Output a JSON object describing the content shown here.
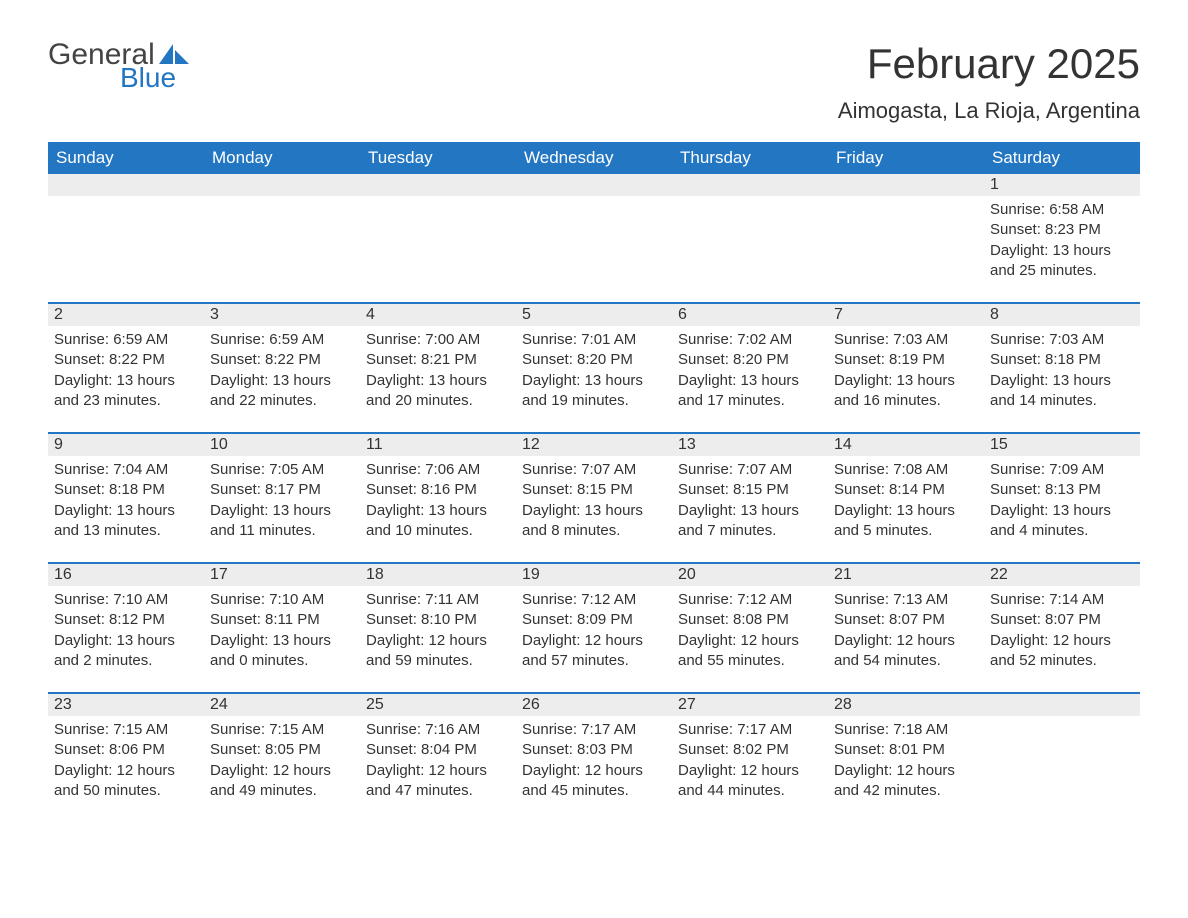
{
  "logo": {
    "text1": "General",
    "text2": "Blue",
    "sail_color": "#2276c2",
    "text1_color": "#444444"
  },
  "title": "February 2025",
  "location": "Aimogasta, La Rioja, Argentina",
  "colors": {
    "header_bg": "#2276c2",
    "header_text": "#ffffff",
    "daynum_bg": "#ededed",
    "week_border": "#2276c2",
    "body_text": "#333333",
    "page_bg": "#ffffff"
  },
  "day_headers": [
    "Sunday",
    "Monday",
    "Tuesday",
    "Wednesday",
    "Thursday",
    "Friday",
    "Saturday"
  ],
  "weeks": [
    [
      {
        "blank": true
      },
      {
        "blank": true
      },
      {
        "blank": true
      },
      {
        "blank": true
      },
      {
        "blank": true
      },
      {
        "blank": true
      },
      {
        "day": "1",
        "sunrise": "Sunrise: 6:58 AM",
        "sunset": "Sunset: 8:23 PM",
        "daylight": "Daylight: 13 hours and 25 minutes."
      }
    ],
    [
      {
        "day": "2",
        "sunrise": "Sunrise: 6:59 AM",
        "sunset": "Sunset: 8:22 PM",
        "daylight": "Daylight: 13 hours and 23 minutes."
      },
      {
        "day": "3",
        "sunrise": "Sunrise: 6:59 AM",
        "sunset": "Sunset: 8:22 PM",
        "daylight": "Daylight: 13 hours and 22 minutes."
      },
      {
        "day": "4",
        "sunrise": "Sunrise: 7:00 AM",
        "sunset": "Sunset: 8:21 PM",
        "daylight": "Daylight: 13 hours and 20 minutes."
      },
      {
        "day": "5",
        "sunrise": "Sunrise: 7:01 AM",
        "sunset": "Sunset: 8:20 PM",
        "daylight": "Daylight: 13 hours and 19 minutes."
      },
      {
        "day": "6",
        "sunrise": "Sunrise: 7:02 AM",
        "sunset": "Sunset: 8:20 PM",
        "daylight": "Daylight: 13 hours and 17 minutes."
      },
      {
        "day": "7",
        "sunrise": "Sunrise: 7:03 AM",
        "sunset": "Sunset: 8:19 PM",
        "daylight": "Daylight: 13 hours and 16 minutes."
      },
      {
        "day": "8",
        "sunrise": "Sunrise: 7:03 AM",
        "sunset": "Sunset: 8:18 PM",
        "daylight": "Daylight: 13 hours and 14 minutes."
      }
    ],
    [
      {
        "day": "9",
        "sunrise": "Sunrise: 7:04 AM",
        "sunset": "Sunset: 8:18 PM",
        "daylight": "Daylight: 13 hours and 13 minutes."
      },
      {
        "day": "10",
        "sunrise": "Sunrise: 7:05 AM",
        "sunset": "Sunset: 8:17 PM",
        "daylight": "Daylight: 13 hours and 11 minutes."
      },
      {
        "day": "11",
        "sunrise": "Sunrise: 7:06 AM",
        "sunset": "Sunset: 8:16 PM",
        "daylight": "Daylight: 13 hours and 10 minutes."
      },
      {
        "day": "12",
        "sunrise": "Sunrise: 7:07 AM",
        "sunset": "Sunset: 8:15 PM",
        "daylight": "Daylight: 13 hours and 8 minutes."
      },
      {
        "day": "13",
        "sunrise": "Sunrise: 7:07 AM",
        "sunset": "Sunset: 8:15 PM",
        "daylight": "Daylight: 13 hours and 7 minutes."
      },
      {
        "day": "14",
        "sunrise": "Sunrise: 7:08 AM",
        "sunset": "Sunset: 8:14 PM",
        "daylight": "Daylight: 13 hours and 5 minutes."
      },
      {
        "day": "15",
        "sunrise": "Sunrise: 7:09 AM",
        "sunset": "Sunset: 8:13 PM",
        "daylight": "Daylight: 13 hours and 4 minutes."
      }
    ],
    [
      {
        "day": "16",
        "sunrise": "Sunrise: 7:10 AM",
        "sunset": "Sunset: 8:12 PM",
        "daylight": "Daylight: 13 hours and 2 minutes."
      },
      {
        "day": "17",
        "sunrise": "Sunrise: 7:10 AM",
        "sunset": "Sunset: 8:11 PM",
        "daylight": "Daylight: 13 hours and 0 minutes."
      },
      {
        "day": "18",
        "sunrise": "Sunrise: 7:11 AM",
        "sunset": "Sunset: 8:10 PM",
        "daylight": "Daylight: 12 hours and 59 minutes."
      },
      {
        "day": "19",
        "sunrise": "Sunrise: 7:12 AM",
        "sunset": "Sunset: 8:09 PM",
        "daylight": "Daylight: 12 hours and 57 minutes."
      },
      {
        "day": "20",
        "sunrise": "Sunrise: 7:12 AM",
        "sunset": "Sunset: 8:08 PM",
        "daylight": "Daylight: 12 hours and 55 minutes."
      },
      {
        "day": "21",
        "sunrise": "Sunrise: 7:13 AM",
        "sunset": "Sunset: 8:07 PM",
        "daylight": "Daylight: 12 hours and 54 minutes."
      },
      {
        "day": "22",
        "sunrise": "Sunrise: 7:14 AM",
        "sunset": "Sunset: 8:07 PM",
        "daylight": "Daylight: 12 hours and 52 minutes."
      }
    ],
    [
      {
        "day": "23",
        "sunrise": "Sunrise: 7:15 AM",
        "sunset": "Sunset: 8:06 PM",
        "daylight": "Daylight: 12 hours and 50 minutes."
      },
      {
        "day": "24",
        "sunrise": "Sunrise: 7:15 AM",
        "sunset": "Sunset: 8:05 PM",
        "daylight": "Daylight: 12 hours and 49 minutes."
      },
      {
        "day": "25",
        "sunrise": "Sunrise: 7:16 AM",
        "sunset": "Sunset: 8:04 PM",
        "daylight": "Daylight: 12 hours and 47 minutes."
      },
      {
        "day": "26",
        "sunrise": "Sunrise: 7:17 AM",
        "sunset": "Sunset: 8:03 PM",
        "daylight": "Daylight: 12 hours and 45 minutes."
      },
      {
        "day": "27",
        "sunrise": "Sunrise: 7:17 AM",
        "sunset": "Sunset: 8:02 PM",
        "daylight": "Daylight: 12 hours and 44 minutes."
      },
      {
        "day": "28",
        "sunrise": "Sunrise: 7:18 AM",
        "sunset": "Sunset: 8:01 PM",
        "daylight": "Daylight: 12 hours and 42 minutes."
      },
      {
        "blank": true
      }
    ]
  ]
}
